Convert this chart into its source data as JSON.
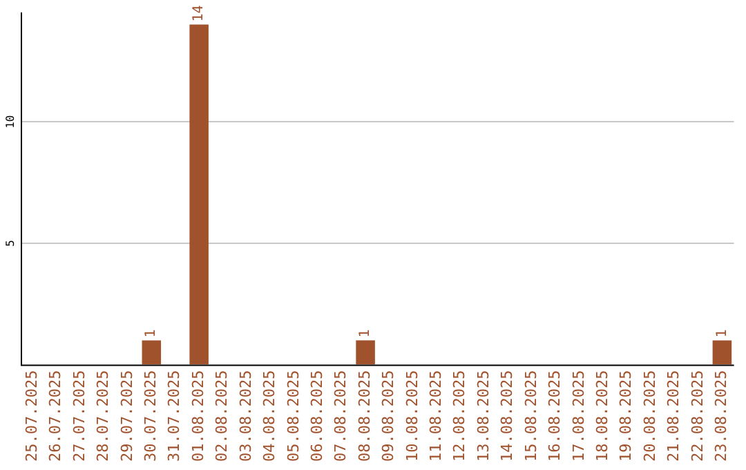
{
  "chart_data": {
    "type": "bar",
    "categories": [
      "25.07.2025",
      "26.07.2025",
      "27.07.2025",
      "28.07.2025",
      "29.07.2025",
      "30.07.2025",
      "31.07.2025",
      "01.08.2025",
      "02.08.2025",
      "03.08.2025",
      "04.08.2025",
      "05.08.2025",
      "06.08.2025",
      "07.08.2025",
      "08.08.2025",
      "09.08.2025",
      "10.08.2025",
      "11.08.2025",
      "12.08.2025",
      "13.08.2025",
      "14.08.2025",
      "15.08.2025",
      "16.08.2025",
      "17.08.2025",
      "18.08.2025",
      "19.08.2025",
      "20.08.2025",
      "21.08.2025",
      "22.08.2025",
      "23.08.2025"
    ],
    "values": [
      0,
      0,
      0,
      0,
      0,
      1,
      0,
      14,
      0,
      0,
      0,
      0,
      0,
      0,
      1,
      0,
      0,
      0,
      0,
      0,
      0,
      0,
      0,
      0,
      0,
      0,
      0,
      0,
      0,
      1
    ],
    "value_labels": [
      null,
      null,
      null,
      null,
      null,
      "1",
      null,
      "14",
      null,
      null,
      null,
      null,
      null,
      null,
      "1",
      null,
      null,
      null,
      null,
      null,
      null,
      null,
      null,
      null,
      null,
      null,
      null,
      null,
      null,
      "1"
    ],
    "color": "#a0522d",
    "ylim": [
      0,
      14.5
    ],
    "yticks": [
      5,
      10
    ],
    "grid": "y",
    "legend": false
  }
}
